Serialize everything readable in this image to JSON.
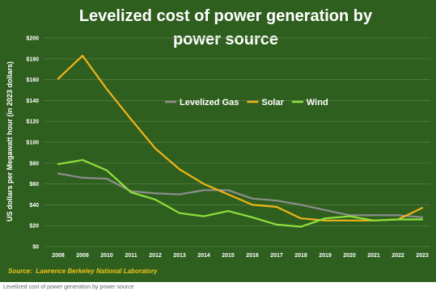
{
  "caption": "Levelized cost of power generation by power source",
  "chart_data": {
    "type": "line",
    "title_lines": [
      "Levelized cost of power generation by",
      "power source"
    ],
    "xlabel": "",
    "ylabel": "US dollars per Megawatt hour (in 2023 dollars)",
    "x": [
      "2008",
      "2009",
      "2010",
      "2011",
      "2012",
      "2013",
      "2014",
      "2015",
      "2016",
      "2017",
      "2018",
      "2019",
      "2020",
      "2021",
      "2022",
      "2023"
    ],
    "ylim": [
      0,
      200
    ],
    "yticks": [
      {
        "value": 0,
        "label": "$0"
      },
      {
        "value": 20,
        "label": "$20"
      },
      {
        "value": 40,
        "label": "$40"
      },
      {
        "value": 60,
        "label": "$60"
      },
      {
        "value": 80,
        "label": "$80"
      },
      {
        "value": 100,
        "label": "$100"
      },
      {
        "value": 120,
        "label": "$120"
      },
      {
        "value": 140,
        "label": "$140"
      },
      {
        "value": 160,
        "label": "$160"
      },
      {
        "value": 180,
        "label": "$180"
      },
      {
        "value": 200,
        "label": "$200"
      }
    ],
    "grid": true,
    "legend_position": "inside-right",
    "series": [
      {
        "name": "Levelized Gas",
        "color": "#8e8e8e",
        "values": [
          70,
          66,
          65,
          53,
          51,
          50,
          54,
          54,
          46,
          44,
          40,
          35,
          30,
          30,
          30,
          28
        ]
      },
      {
        "name": "Solar",
        "color": "#f0b418",
        "values": [
          161,
          183,
          151,
          122,
          94,
          74,
          60,
          50,
          40,
          38,
          27,
          25,
          25,
          25,
          26,
          37
        ]
      },
      {
        "name": "Wind",
        "color": "#8ee03c",
        "values": [
          79,
          83,
          73,
          52,
          45,
          32,
          29,
          34,
          28,
          21,
          19,
          27,
          29,
          25,
          26,
          26
        ]
      }
    ],
    "source": "Source:  Lawrence Berkeley National Laboratory"
  }
}
